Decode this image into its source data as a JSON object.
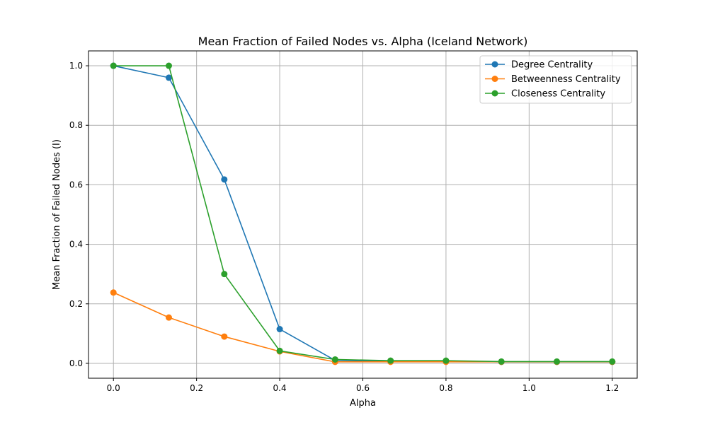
{
  "chart_data": {
    "type": "line",
    "title": "Mean Fraction of Failed Nodes vs. Alpha (Iceland Network)",
    "xlabel": "Alpha",
    "ylabel": "Mean Fraction of Failed Nodes (I)",
    "x": [
      0.0,
      0.1333,
      0.2667,
      0.4,
      0.5333,
      0.6667,
      0.8,
      0.9333,
      1.0667,
      1.2
    ],
    "xlim": [
      -0.06,
      1.26
    ],
    "ylim": [
      -0.05,
      1.05
    ],
    "xticks": [
      0.0,
      0.2,
      0.4,
      0.6,
      0.8,
      1.0,
      1.2
    ],
    "xtick_labels": [
      "0.0",
      "0.2",
      "0.4",
      "0.6",
      "0.8",
      "1.0",
      "1.2"
    ],
    "yticks": [
      0.0,
      0.2,
      0.4,
      0.6,
      0.8,
      1.0
    ],
    "ytick_labels": [
      "0.0",
      "0.2",
      "0.4",
      "0.6",
      "0.8",
      "1.0"
    ],
    "grid": true,
    "legend_position": "top-right",
    "series": [
      {
        "name": "Degree Centrality",
        "color": "#1f77b4",
        "values": [
          1.0,
          0.96,
          0.618,
          0.115,
          0.01,
          0.007,
          0.007,
          0.005,
          0.005,
          0.005
        ]
      },
      {
        "name": "Betweenness Centrality",
        "color": "#ff7f0e",
        "values": [
          0.238,
          0.154,
          0.09,
          0.04,
          0.005,
          0.005,
          0.005,
          0.005,
          0.005,
          0.005
        ]
      },
      {
        "name": "Closeness Centrality",
        "color": "#2ca02c",
        "values": [
          1.0,
          1.0,
          0.3,
          0.042,
          0.013,
          0.009,
          0.009,
          0.006,
          0.006,
          0.006
        ]
      }
    ]
  }
}
